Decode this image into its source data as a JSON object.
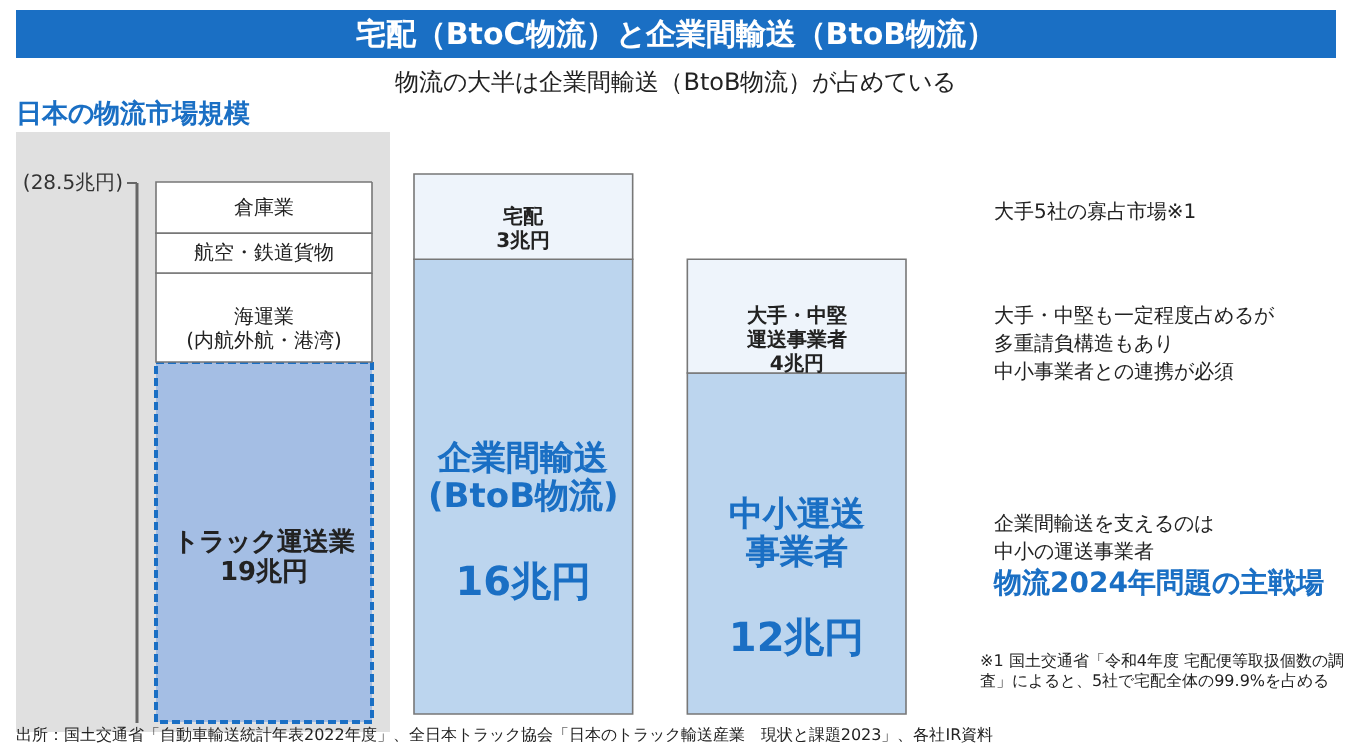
{
  "chart_data": [
    {
      "type": "bar",
      "title": "日本の物流市場規模",
      "stacked": true,
      "categories": [
        null
      ],
      "ylim": [
        0,
        28.5
      ],
      "yticks": [
        {
          "value": 28.5,
          "label": "(28.5兆円)"
        }
      ],
      "series": [
        {
          "name": "トラック運送業",
          "color": "#a4bee4",
          "values": [
            19
          ],
          "value_labels": [
            "19兆円"
          ]
        },
        {
          "name": "海運業\n(内航外航・港湾)",
          "color": "#ffffff",
          "values": [
            4.7
          ]
        },
        {
          "name": "航空・鉄道貨物",
          "color": "#ffffff",
          "values": [
            2.1
          ]
        },
        {
          "name": "倉庫業",
          "color": "#ffffff",
          "values": [
            2.7
          ]
        }
      ]
    },
    {
      "type": "bar",
      "title": "宅配（BtoC物流）と企業間輸送（BtoB物流）",
      "subtitle": "物流の大半は企業間輸送（BtoB物流）が占めている",
      "stacked": true,
      "categories": [
        null,
        null
      ],
      "tick_labels": false,
      "series": [
        {
          "name": "企業間輸送\n(BtoB物流)",
          "color": "#bcd5ee",
          "values": [
            16,
            null
          ],
          "value_labels": [
            "16兆円",
            null
          ]
        },
        {
          "name": "中小運送事業者",
          "color": "#bcd5ee",
          "values": [
            null,
            12
          ],
          "value_labels": [
            null,
            "12兆円"
          ]
        },
        {
          "name": "宅配",
          "color": "#eef4fb",
          "values": [
            3,
            null
          ],
          "value_labels": [
            "3兆円",
            null
          ]
        },
        {
          "name": "大手・中堅運送事業者",
          "color": "#eef4fb",
          "values": [
            null,
            4
          ],
          "value_labels": [
            null,
            "4兆円"
          ]
        }
      ],
      "annotations": [
        "大手5社の寡占市場※1",
        "大手・中堅も一定程度占めるが",
        "多重請負構造もあり",
        "中小事業者との連携が必須",
        "企業間輸送を支えるのは",
        "中小の運送事業者",
        "物流2024年問題の主戦場",
        "※1 国土交通省「令和4年度 宅配便等取扱個数の調査」によると、5社で宅配全体の99.9%を占める",
        "出所：国土交通省「自動車輸送統計年表2022年度」、全日本トラック協会「日本のトラック輸送産業　現状と課題2023」、各社IR資料"
      ]
    }
  ]
}
